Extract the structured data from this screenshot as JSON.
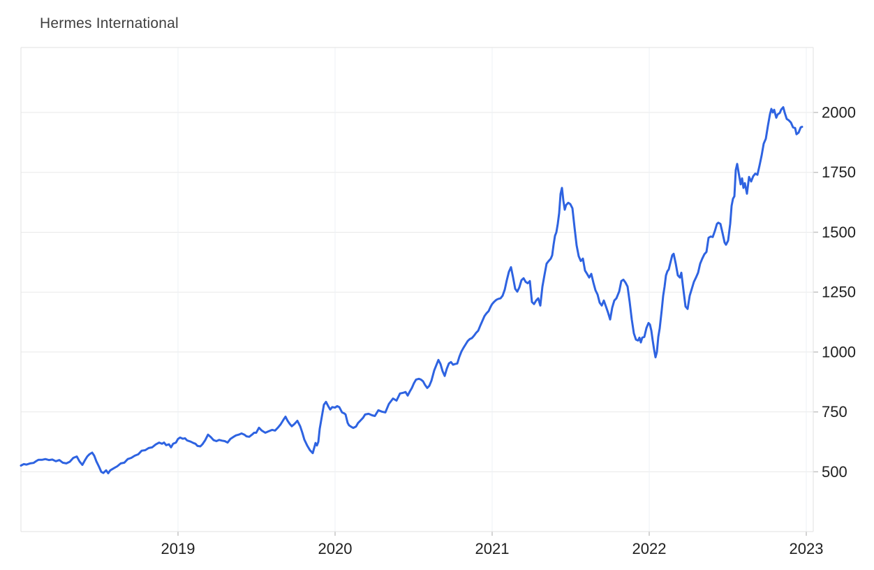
{
  "chart": {
    "title": "Hermes International"
  },
  "colors": {
    "background": "#ffffff",
    "line": "#2e63e1",
    "h_gridline": "#e9e9e9",
    "v_gridline": "#edf1f4",
    "plot_border": "#e2e2e2",
    "tick_mark": "#c4c4c4",
    "axis_label": "#202020",
    "title_text": "#404040"
  },
  "chart_data": {
    "type": "line",
    "title": "Hermes International",
    "series_name": "Hermes International",
    "legend": "none",
    "grid": "on",
    "x_axis": {
      "tick_labels": [
        "2019",
        "2020",
        "2021",
        "2022",
        "2023"
      ],
      "tick_years": [
        2019,
        2020,
        2021,
        2022,
        2023
      ],
      "start_year": 2018.0,
      "end_year": 2023.04,
      "note": "weekly price data from Jan 2018 to late Dec 2022"
    },
    "y_axis": {
      "tick_labels": [
        "500",
        "750",
        "1000",
        "1250",
        "1500",
        "1750",
        "2000"
      ],
      "tick_values": [
        500,
        750,
        1000,
        1250,
        1500,
        1750,
        2000
      ],
      "side": "right",
      "approx_range": [
        250,
        2270
      ]
    },
    "x_px_to_year": "year = 2018 + (x_px - 30) / 225",
    "points_format": "[x_px, price]",
    "points": [
      [
        30,
        526
      ],
      [
        34,
        532
      ],
      [
        38,
        530
      ],
      [
        43,
        535
      ],
      [
        48,
        537
      ],
      [
        52,
        545
      ],
      [
        55,
        550
      ],
      [
        60,
        550
      ],
      [
        65,
        553
      ],
      [
        70,
        549
      ],
      [
        75,
        551
      ],
      [
        80,
        544
      ],
      [
        85,
        549
      ],
      [
        90,
        538
      ],
      [
        95,
        535
      ],
      [
        100,
        542
      ],
      [
        105,
        558
      ],
      [
        110,
        564
      ],
      [
        114,
        543
      ],
      [
        118,
        529
      ],
      [
        122,
        550
      ],
      [
        125,
        564
      ],
      [
        128,
        573
      ],
      [
        132,
        580
      ],
      [
        135,
        567
      ],
      [
        138,
        544
      ],
      [
        142,
        520
      ],
      [
        145,
        500
      ],
      [
        148,
        495
      ],
      [
        152,
        506
      ],
      [
        155,
        494
      ],
      [
        158,
        506
      ],
      [
        163,
        515
      ],
      [
        168,
        523
      ],
      [
        173,
        535
      ],
      [
        178,
        538
      ],
      [
        183,
        553
      ],
      [
        188,
        558
      ],
      [
        193,
        567
      ],
      [
        198,
        573
      ],
      [
        203,
        588
      ],
      [
        208,
        590
      ],
      [
        213,
        599
      ],
      [
        218,
        602
      ],
      [
        223,
        614
      ],
      [
        228,
        622
      ],
      [
        232,
        617
      ],
      [
        235,
        622
      ],
      [
        238,
        611
      ],
      [
        242,
        615
      ],
      [
        245,
        602
      ],
      [
        248,
        617
      ],
      [
        252,
        622
      ],
      [
        255,
        637
      ],
      [
        258,
        643
      ],
      [
        262,
        638
      ],
      [
        265,
        640
      ],
      [
        268,
        631
      ],
      [
        273,
        626
      ],
      [
        277,
        620
      ],
      [
        280,
        617
      ],
      [
        283,
        608
      ],
      [
        287,
        606
      ],
      [
        290,
        615
      ],
      [
        294,
        632
      ],
      [
        298,
        655
      ],
      [
        302,
        645
      ],
      [
        306,
        632
      ],
      [
        310,
        628
      ],
      [
        314,
        633
      ],
      [
        318,
        630
      ],
      [
        322,
        628
      ],
      [
        326,
        622
      ],
      [
        330,
        637
      ],
      [
        334,
        645
      ],
      [
        338,
        652
      ],
      [
        342,
        655
      ],
      [
        346,
        660
      ],
      [
        350,
        655
      ],
      [
        353,
        648
      ],
      [
        357,
        646
      ],
      [
        361,
        655
      ],
      [
        364,
        663
      ],
      [
        367,
        663
      ],
      [
        371,
        684
      ],
      [
        375,
        672
      ],
      [
        380,
        663
      ],
      [
        384,
        668
      ],
      [
        388,
        673
      ],
      [
        390,
        675
      ],
      [
        394,
        672
      ],
      [
        398,
        684
      ],
      [
        402,
        698
      ],
      [
        406,
        717
      ],
      [
        409,
        730
      ],
      [
        412,
        713
      ],
      [
        415,
        700
      ],
      [
        418,
        690
      ],
      [
        422,
        700
      ],
      [
        426,
        713
      ],
      [
        430,
        690
      ],
      [
        433,
        664
      ],
      [
        436,
        634
      ],
      [
        440,
        610
      ],
      [
        444,
        590
      ],
      [
        448,
        578
      ],
      [
        452,
        620
      ],
      [
        454,
        610
      ],
      [
        456,
        625
      ],
      [
        458,
        680
      ],
      [
        461,
        730
      ],
      [
        464,
        780
      ],
      [
        467,
        792
      ],
      [
        470,
        775
      ],
      [
        473,
        760
      ],
      [
        476,
        770
      ],
      [
        480,
        768
      ],
      [
        483,
        774
      ],
      [
        486,
        770
      ],
      [
        490,
        748
      ],
      [
        493,
        744
      ],
      [
        495,
        739
      ],
      [
        498,
        704
      ],
      [
        500,
        694
      ],
      [
        503,
        688
      ],
      [
        506,
        683
      ],
      [
        508,
        686
      ],
      [
        510,
        689
      ],
      [
        513,
        704
      ],
      [
        516,
        713
      ],
      [
        520,
        725
      ],
      [
        523,
        739
      ],
      [
        528,
        742
      ],
      [
        533,
        736
      ],
      [
        537,
        733
      ],
      [
        542,
        757
      ],
      [
        547,
        751
      ],
      [
        552,
        748
      ],
      [
        557,
        783
      ],
      [
        563,
        806
      ],
      [
        568,
        797
      ],
      [
        573,
        827
      ],
      [
        578,
        830
      ],
      [
        581,
        833
      ],
      [
        584,
        818
      ],
      [
        587,
        835
      ],
      [
        590,
        850
      ],
      [
        593,
        870
      ],
      [
        596,
        885
      ],
      [
        600,
        888
      ],
      [
        603,
        885
      ],
      [
        606,
        878
      ],
      [
        609,
        862
      ],
      [
        612,
        850
      ],
      [
        615,
        859
      ],
      [
        618,
        880
      ],
      [
        622,
        923
      ],
      [
        625,
        945
      ],
      [
        628,
        967
      ],
      [
        631,
        950
      ],
      [
        634,
        920
      ],
      [
        637,
        900
      ],
      [
        640,
        930
      ],
      [
        643,
        952
      ],
      [
        646,
        958
      ],
      [
        649,
        947
      ],
      [
        652,
        950
      ],
      [
        655,
        952
      ],
      [
        658,
        980
      ],
      [
        661,
        1002
      ],
      [
        664,
        1018
      ],
      [
        667,
        1032
      ],
      [
        670,
        1046
      ],
      [
        673,
        1054
      ],
      [
        676,
        1058
      ],
      [
        679,
        1068
      ],
      [
        682,
        1080
      ],
      [
        685,
        1089
      ],
      [
        688,
        1110
      ],
      [
        691,
        1130
      ],
      [
        694,
        1150
      ],
      [
        697,
        1162
      ],
      [
        700,
        1171
      ],
      [
        703,
        1190
      ],
      [
        705,
        1200
      ],
      [
        708,
        1210
      ],
      [
        711,
        1218
      ],
      [
        714,
        1222
      ],
      [
        717,
        1224
      ],
      [
        720,
        1235
      ],
      [
        723,
        1260
      ],
      [
        726,
        1300
      ],
      [
        729,
        1335
      ],
      [
        732,
        1354
      ],
      [
        735,
        1311
      ],
      [
        738,
        1264
      ],
      [
        741,
        1252
      ],
      [
        744,
        1270
      ],
      [
        747,
        1300
      ],
      [
        750,
        1308
      ],
      [
        753,
        1293
      ],
      [
        756,
        1287
      ],
      [
        759,
        1296
      ],
      [
        762,
        1209
      ],
      [
        765,
        1200
      ],
      [
        768,
        1215
      ],
      [
        771,
        1224
      ],
      [
        774,
        1194
      ],
      [
        777,
        1273
      ],
      [
        780,
        1322
      ],
      [
        783,
        1369
      ],
      [
        786,
        1380
      ],
      [
        789,
        1390
      ],
      [
        791,
        1404
      ],
      [
        793,
        1448
      ],
      [
        795,
        1485
      ],
      [
        797,
        1500
      ],
      [
        799,
        1535
      ],
      [
        801,
        1580
      ],
      [
        803,
        1660
      ],
      [
        805,
        1685
      ],
      [
        807,
        1632
      ],
      [
        809,
        1594
      ],
      [
        811,
        1614
      ],
      [
        814,
        1623
      ],
      [
        817,
        1617
      ],
      [
        820,
        1600
      ],
      [
        823,
        1520
      ],
      [
        826,
        1445
      ],
      [
        829,
        1400
      ],
      [
        832,
        1380
      ],
      [
        835,
        1390
      ],
      [
        838,
        1340
      ],
      [
        841,
        1326
      ],
      [
        844,
        1311
      ],
      [
        847,
        1326
      ],
      [
        850,
        1290
      ],
      [
        853,
        1258
      ],
      [
        856,
        1240
      ],
      [
        859,
        1206
      ],
      [
        862,
        1194
      ],
      [
        865,
        1215
      ],
      [
        868,
        1190
      ],
      [
        871,
        1165
      ],
      [
        874,
        1136
      ],
      [
        877,
        1185
      ],
      [
        880,
        1215
      ],
      [
        883,
        1224
      ],
      [
        887,
        1253
      ],
      [
        890,
        1296
      ],
      [
        893,
        1302
      ],
      [
        896,
        1290
      ],
      [
        899,
        1273
      ],
      [
        902,
        1209
      ],
      [
        905,
        1136
      ],
      [
        908,
        1078
      ],
      [
        911,
        1052
      ],
      [
        914,
        1048
      ],
      [
        916,
        1060
      ],
      [
        918,
        1040
      ],
      [
        920,
        1060
      ],
      [
        923,
        1063
      ],
      [
        926,
        1100
      ],
      [
        929,
        1121
      ],
      [
        931,
        1115
      ],
      [
        933,
        1090
      ],
      [
        935,
        1048
      ],
      [
        937,
        1010
      ],
      [
        939,
        978
      ],
      [
        941,
        1000
      ],
      [
        943,
        1063
      ],
      [
        945,
        1098
      ],
      [
        948,
        1177
      ],
      [
        950,
        1235
      ],
      [
        952,
        1273
      ],
      [
        954,
        1320
      ],
      [
        956,
        1337
      ],
      [
        958,
        1345
      ],
      [
        960,
        1369
      ],
      [
        963,
        1404
      ],
      [
        965,
        1410
      ],
      [
        968,
        1369
      ],
      [
        971,
        1320
      ],
      [
        974,
        1311
      ],
      [
        976,
        1331
      ],
      [
        979,
        1260
      ],
      [
        982,
        1190
      ],
      [
        985,
        1180
      ],
      [
        988,
        1235
      ],
      [
        991,
        1264
      ],
      [
        994,
        1293
      ],
      [
        997,
        1311
      ],
      [
        1000,
        1331
      ],
      [
        1003,
        1369
      ],
      [
        1006,
        1390
      ],
      [
        1009,
        1408
      ],
      [
        1012,
        1418
      ],
      [
        1015,
        1477
      ],
      [
        1018,
        1482
      ],
      [
        1021,
        1480
      ],
      [
        1024,
        1505
      ],
      [
        1027,
        1535
      ],
      [
        1029,
        1540
      ],
      [
        1032,
        1535
      ],
      [
        1035,
        1497
      ],
      [
        1038,
        1457
      ],
      [
        1040,
        1448
      ],
      [
        1043,
        1465
      ],
      [
        1046,
        1535
      ],
      [
        1048,
        1610
      ],
      [
        1050,
        1640
      ],
      [
        1052,
        1650
      ],
      [
        1054,
        1760
      ],
      [
        1056,
        1785
      ],
      [
        1058,
        1750
      ],
      [
        1061,
        1700
      ],
      [
        1063,
        1725
      ],
      [
        1065,
        1685
      ],
      [
        1067,
        1705
      ],
      [
        1070,
        1661
      ],
      [
        1073,
        1731
      ],
      [
        1076,
        1712
      ],
      [
        1079,
        1734
      ],
      [
        1082,
        1745
      ],
      [
        1085,
        1740
      ],
      [
        1088,
        1778
      ],
      [
        1091,
        1820
      ],
      [
        1094,
        1870
      ],
      [
        1097,
        1890
      ],
      [
        1100,
        1944
      ],
      [
        1103,
        1993
      ],
      [
        1105,
        2015
      ],
      [
        1107,
        2000
      ],
      [
        1109,
        2011
      ],
      [
        1112,
        1978
      ],
      [
        1114,
        1992
      ],
      [
        1117,
        1998
      ],
      [
        1119,
        2012
      ],
      [
        1122,
        2022
      ],
      [
        1124,
        2000
      ],
      [
        1127,
        1973
      ],
      [
        1130,
        1967
      ],
      [
        1133,
        1958
      ],
      [
        1136,
        1938
      ],
      [
        1139,
        1935
      ],
      [
        1141,
        1909
      ],
      [
        1144,
        1916
      ],
      [
        1147,
        1938
      ],
      [
        1149,
        1940
      ]
    ]
  }
}
